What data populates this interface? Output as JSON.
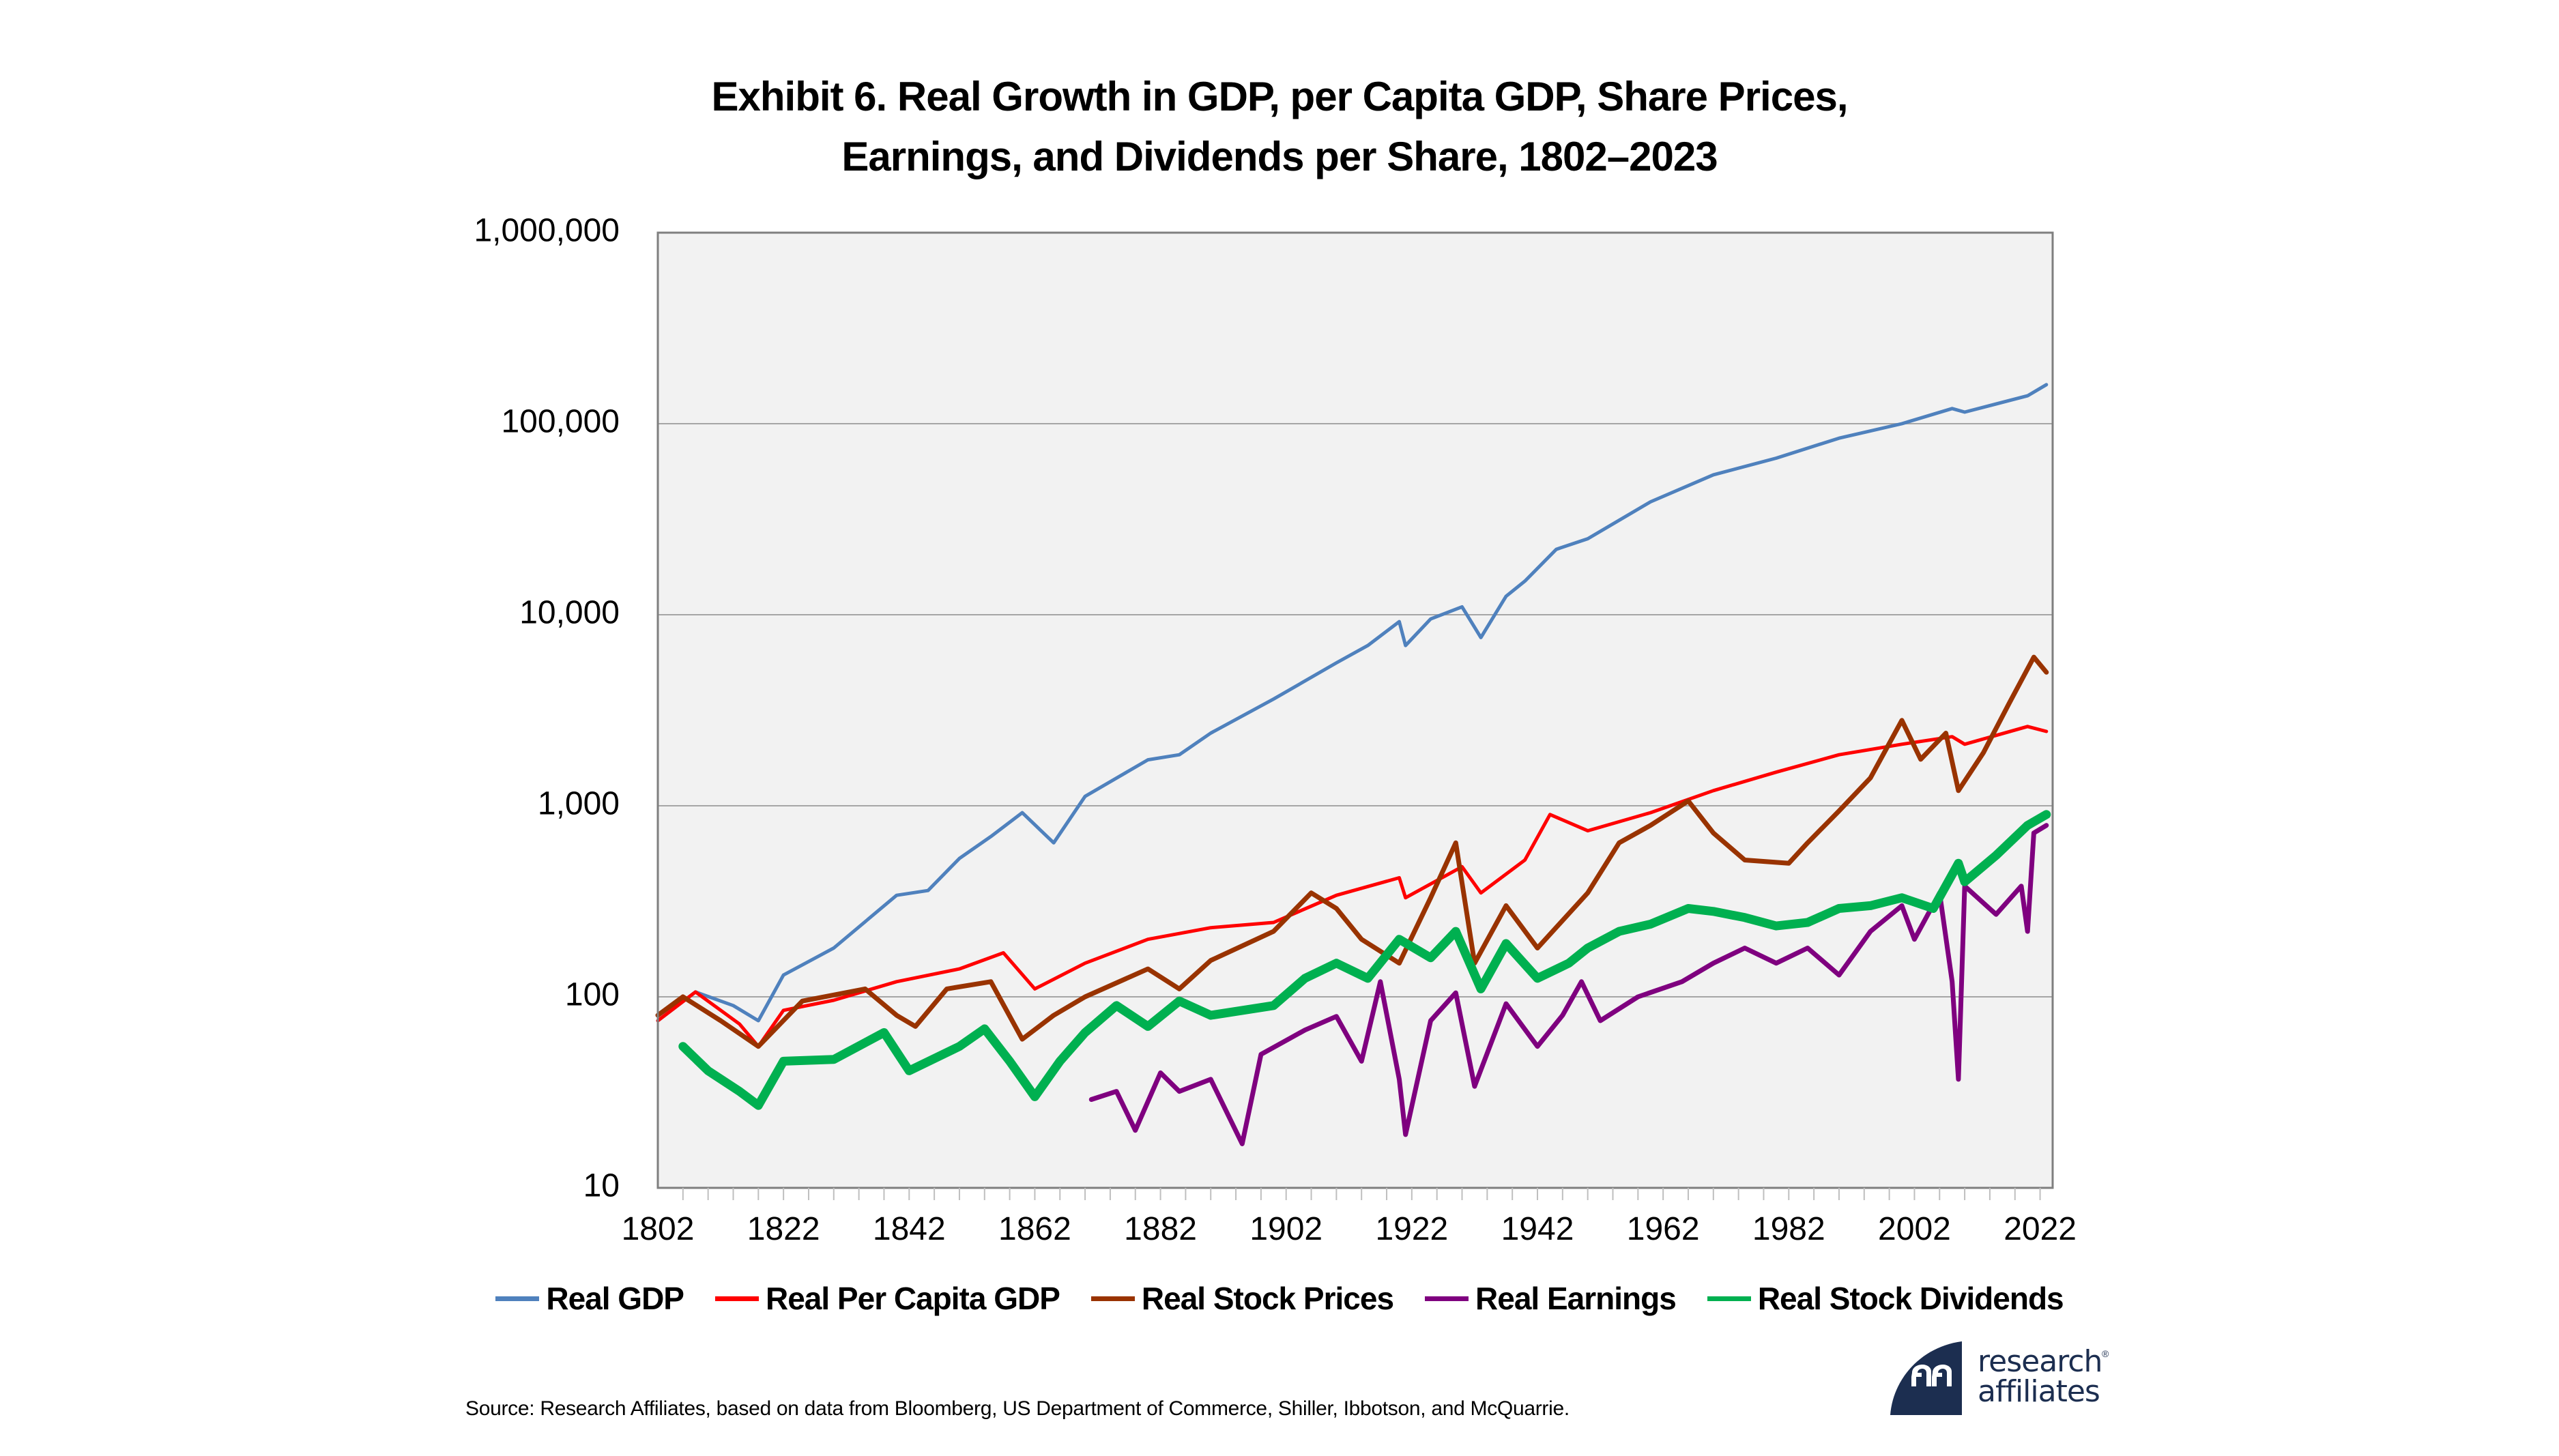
{
  "chart_data": {
    "type": "line",
    "title": "Exhibit 6. Real Growth in GDP, per Capita GDP, Share Prices, Earnings, and Dividends per Share, 1802–2023",
    "title_lines": [
      "Exhibit 6. Real Growth in GDP, per Capita GDP, Share Prices,",
      "Earnings, and Dividends per Share, 1802–2023"
    ],
    "xlabel": "",
    "ylabel": "",
    "yscale": "log",
    "ylim": [
      10,
      1000000
    ],
    "xlim": [
      1802,
      2024
    ],
    "grid": true,
    "legend_position": "bottom",
    "y_tick_values": [
      10,
      100,
      1000,
      10000,
      100000,
      1000000
    ],
    "y_tick_labels": [
      "10",
      "100",
      "1,000",
      "10,000",
      "100,000",
      "1,000,000"
    ],
    "x_tick_values": [
      1802,
      1822,
      1842,
      1862,
      1882,
      1902,
      1922,
      1942,
      1962,
      1982,
      2002,
      2022
    ],
    "x_tick_labels": [
      "1802",
      "1822",
      "1842",
      "1862",
      "1882",
      "1902",
      "1922",
      "1942",
      "1962",
      "1982",
      "2002",
      "2022"
    ],
    "series": [
      {
        "name": "Real GDP",
        "color": "#4f81bd",
        "points": [
          [
            1802,
            75
          ],
          [
            1808,
            106
          ],
          [
            1814,
            90
          ],
          [
            1818,
            75
          ],
          [
            1822,
            130
          ],
          [
            1830,
            180
          ],
          [
            1840,
            340
          ],
          [
            1845,
            360
          ],
          [
            1850,
            530
          ],
          [
            1855,
            690
          ],
          [
            1860,
            920
          ],
          [
            1865,
            640
          ],
          [
            1870,
            1120
          ],
          [
            1880,
            1740
          ],
          [
            1885,
            1850
          ],
          [
            1890,
            2400
          ],
          [
            1900,
            3620
          ],
          [
            1910,
            5600
          ],
          [
            1915,
            6900
          ],
          [
            1920,
            9200
          ],
          [
            1921,
            6900
          ],
          [
            1925,
            9500
          ],
          [
            1930,
            11000
          ],
          [
            1933,
            7600
          ],
          [
            1937,
            12500
          ],
          [
            1940,
            15000
          ],
          [
            1945,
            22000
          ],
          [
            1950,
            25000
          ],
          [
            1960,
            39000
          ],
          [
            1970,
            54000
          ],
          [
            1980,
            66000
          ],
          [
            1990,
            84000
          ],
          [
            2000,
            100000
          ],
          [
            2008,
            120000
          ],
          [
            2010,
            115000
          ],
          [
            2020,
            140000
          ],
          [
            2023,
            160000
          ]
        ]
      },
      {
        "name": "Real Per Capita GDP",
        "color": "#ff0000",
        "points": [
          [
            1802,
            75
          ],
          [
            1808,
            106
          ],
          [
            1815,
            72
          ],
          [
            1818,
            55
          ],
          [
            1822,
            85
          ],
          [
            1830,
            96
          ],
          [
            1840,
            120
          ],
          [
            1850,
            140
          ],
          [
            1857,
            170
          ],
          [
            1862,
            110
          ],
          [
            1870,
            150
          ],
          [
            1880,
            200
          ],
          [
            1890,
            230
          ],
          [
            1900,
            245
          ],
          [
            1910,
            340
          ],
          [
            1920,
            420
          ],
          [
            1921,
            330
          ],
          [
            1930,
            480
          ],
          [
            1933,
            350
          ],
          [
            1940,
            520
          ],
          [
            1944,
            900
          ],
          [
            1950,
            740
          ],
          [
            1960,
            920
          ],
          [
            1970,
            1200
          ],
          [
            1980,
            1500
          ],
          [
            1990,
            1850
          ],
          [
            2000,
            2100
          ],
          [
            2008,
            2300
          ],
          [
            2010,
            2100
          ],
          [
            2020,
            2600
          ],
          [
            2023,
            2450
          ]
        ]
      },
      {
        "name": "Real Stock Prices",
        "color": "#993300",
        "points": [
          [
            1802,
            80
          ],
          [
            1806,
            100
          ],
          [
            1812,
            75
          ],
          [
            1818,
            55
          ],
          [
            1825,
            95
          ],
          [
            1835,
            110
          ],
          [
            1840,
            80
          ],
          [
            1843,
            70
          ],
          [
            1848,
            110
          ],
          [
            1855,
            120
          ],
          [
            1860,
            60
          ],
          [
            1865,
            80
          ],
          [
            1870,
            100
          ],
          [
            1880,
            140
          ],
          [
            1885,
            110
          ],
          [
            1890,
            155
          ],
          [
            1900,
            220
          ],
          [
            1906,
            350
          ],
          [
            1910,
            290
          ],
          [
            1914,
            200
          ],
          [
            1920,
            150
          ],
          [
            1925,
            330
          ],
          [
            1929,
            640
          ],
          [
            1932,
            150
          ],
          [
            1937,
            300
          ],
          [
            1942,
            180
          ],
          [
            1950,
            350
          ],
          [
            1955,
            640
          ],
          [
            1960,
            790
          ],
          [
            1966,
            1060
          ],
          [
            1970,
            720
          ],
          [
            1975,
            520
          ],
          [
            1982,
            500
          ],
          [
            1985,
            640
          ],
          [
            1990,
            940
          ],
          [
            1995,
            1400
          ],
          [
            2000,
            2800
          ],
          [
            2003,
            1750
          ],
          [
            2007,
            2400
          ],
          [
            2009,
            1200
          ],
          [
            2013,
            1900
          ],
          [
            2017,
            3400
          ],
          [
            2021,
            6000
          ],
          [
            2023,
            5000
          ]
        ]
      },
      {
        "name": "Real Earnings",
        "color": "#7f007f",
        "points": [
          [
            1871,
            29
          ],
          [
            1875,
            32
          ],
          [
            1878,
            20
          ],
          [
            1882,
            40
          ],
          [
            1885,
            32
          ],
          [
            1890,
            37
          ],
          [
            1895,
            17
          ],
          [
            1898,
            50
          ],
          [
            1905,
            67
          ],
          [
            1910,
            79
          ],
          [
            1914,
            46
          ],
          [
            1917,
            120
          ],
          [
            1920,
            37
          ],
          [
            1921,
            19
          ],
          [
            1925,
            75
          ],
          [
            1929,
            105
          ],
          [
            1932,
            34
          ],
          [
            1937,
            92
          ],
          [
            1942,
            55
          ],
          [
            1946,
            80
          ],
          [
            1949,
            120
          ],
          [
            1952,
            75
          ],
          [
            1958,
            100
          ],
          [
            1965,
            120
          ],
          [
            1970,
            150
          ],
          [
            1975,
            180
          ],
          [
            1980,
            150
          ],
          [
            1985,
            180
          ],
          [
            1990,
            130
          ],
          [
            1995,
            220
          ],
          [
            2000,
            300
          ],
          [
            2002,
            200
          ],
          [
            2006,
            350
          ],
          [
            2008,
            120
          ],
          [
            2009,
            37
          ],
          [
            2010,
            380
          ],
          [
            2015,
            270
          ],
          [
            2019,
            380
          ],
          [
            2020,
            220
          ],
          [
            2021,
            720
          ],
          [
            2023,
            790
          ]
        ]
      },
      {
        "name": "Real Stock Dividends",
        "color": "#00b050",
        "points": [
          [
            1806,
            55
          ],
          [
            1810,
            41
          ],
          [
            1815,
            32
          ],
          [
            1818,
            27
          ],
          [
            1822,
            46
          ],
          [
            1830,
            47
          ],
          [
            1838,
            65
          ],
          [
            1842,
            41
          ],
          [
            1850,
            55
          ],
          [
            1854,
            68
          ],
          [
            1858,
            46
          ],
          [
            1862,
            30
          ],
          [
            1866,
            46
          ],
          [
            1870,
            65
          ],
          [
            1875,
            90
          ],
          [
            1880,
            70
          ],
          [
            1885,
            95
          ],
          [
            1890,
            80
          ],
          [
            1900,
            90
          ],
          [
            1905,
            125
          ],
          [
            1910,
            150
          ],
          [
            1915,
            125
          ],
          [
            1920,
            200
          ],
          [
            1925,
            160
          ],
          [
            1929,
            220
          ],
          [
            1933,
            110
          ],
          [
            1937,
            190
          ],
          [
            1942,
            125
          ],
          [
            1947,
            150
          ],
          [
            1950,
            180
          ],
          [
            1955,
            220
          ],
          [
            1960,
            240
          ],
          [
            1966,
            290
          ],
          [
            1970,
            280
          ],
          [
            1975,
            260
          ],
          [
            1980,
            235
          ],
          [
            1985,
            245
          ],
          [
            1990,
            290
          ],
          [
            1995,
            300
          ],
          [
            2000,
            330
          ],
          [
            2005,
            290
          ],
          [
            2009,
            500
          ],
          [
            2010,
            400
          ],
          [
            2015,
            550
          ],
          [
            2020,
            790
          ],
          [
            2023,
            900
          ]
        ]
      }
    ]
  },
  "footer": {
    "source": "Source: Research Affiliates, based on data from Bloomberg, US Department of Commerce, Shiller, Ibbotson, and McQuarrie.",
    "logo_line1": "research",
    "logo_line2": "affiliates",
    "logo_reg": "®",
    "logo_icon": "research-affiliates-logo-icon",
    "logo_color": "#1c2e50"
  },
  "plot_background": "#f2f2f2",
  "gridline_color": "#a6a6a6"
}
